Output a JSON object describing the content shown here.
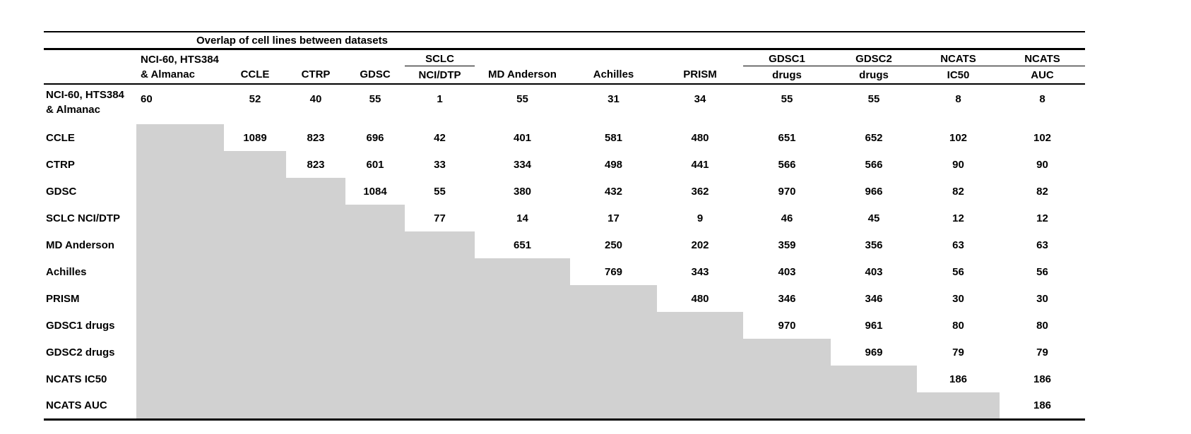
{
  "table": {
    "title": "Overlap of cell lines between datasets",
    "header": {
      "top": [
        "NCI-60, HTS384",
        "",
        "",
        "",
        "SCLC",
        "",
        "",
        "",
        "GDSC1",
        "GDSC2",
        "NCATS",
        "NCATS"
      ],
      "bottom": [
        "& Almanac",
        "CCLE",
        "CTRP",
        "GDSC",
        "NCI/DTP",
        "MD Anderson",
        "Achilles",
        "PRISM",
        "drugs",
        "drugs",
        "IC50",
        "AUC"
      ]
    },
    "row_labels": [
      "NCI-60, HTS384\n& Almanac",
      "CCLE",
      "CTRP",
      "GDSC",
      "SCLC NCI/DTP",
      "MD Anderson",
      "Achilles",
      "PRISM",
      "GDSC1 drugs",
      "GDSC2 drugs",
      "NCATS IC50",
      "NCATS AUC"
    ]
  },
  "colors": {
    "shaded_cell": "#d1d1d1",
    "rule": "#000000",
    "text": "#000000",
    "background": "#ffffff"
  },
  "chart_data": {
    "type": "table",
    "title": "Overlap of cell lines between datasets",
    "columns": [
      "NCI-60, HTS384 & Almanac",
      "CCLE",
      "CTRP",
      "GDSC",
      "SCLC NCI/DTP",
      "MD Anderson",
      "Achilles",
      "PRISM",
      "GDSC1 drugs",
      "GDSC2 drugs",
      "NCATS IC50",
      "NCATS AUC"
    ],
    "rows": [
      "NCI-60, HTS384 & Almanac",
      "CCLE",
      "CTRP",
      "GDSC",
      "SCLC NCI/DTP",
      "MD Anderson",
      "Achilles",
      "PRISM",
      "GDSC1 drugs",
      "GDSC2 drugs",
      "NCATS IC50",
      "NCATS AUC"
    ],
    "matrix": [
      [
        60,
        52,
        40,
        55,
        1,
        55,
        31,
        34,
        55,
        55,
        8,
        8
      ],
      [
        null,
        1089,
        823,
        696,
        42,
        401,
        581,
        480,
        651,
        652,
        102,
        102
      ],
      [
        null,
        null,
        823,
        601,
        33,
        334,
        498,
        441,
        566,
        566,
        90,
        90
      ],
      [
        null,
        null,
        null,
        1084,
        55,
        380,
        432,
        362,
        970,
        966,
        82,
        82
      ],
      [
        null,
        null,
        null,
        null,
        77,
        14,
        17,
        9,
        46,
        45,
        12,
        12
      ],
      [
        null,
        null,
        null,
        null,
        null,
        651,
        250,
        202,
        359,
        356,
        63,
        63
      ],
      [
        null,
        null,
        null,
        null,
        null,
        null,
        769,
        343,
        403,
        403,
        56,
        56
      ],
      [
        null,
        null,
        null,
        null,
        null,
        null,
        null,
        480,
        346,
        346,
        30,
        30
      ],
      [
        null,
        null,
        null,
        null,
        null,
        null,
        null,
        null,
        970,
        961,
        80,
        80
      ],
      [
        null,
        null,
        null,
        null,
        null,
        null,
        null,
        null,
        null,
        969,
        79,
        79
      ],
      [
        null,
        null,
        null,
        null,
        null,
        null,
        null,
        null,
        null,
        null,
        186,
        186
      ],
      [
        null,
        null,
        null,
        null,
        null,
        null,
        null,
        null,
        null,
        null,
        null,
        186
      ]
    ],
    "layout": {
      "upper_triangle_only": true,
      "lower_triangle_shaded_gray": true,
      "grid": false
    }
  }
}
